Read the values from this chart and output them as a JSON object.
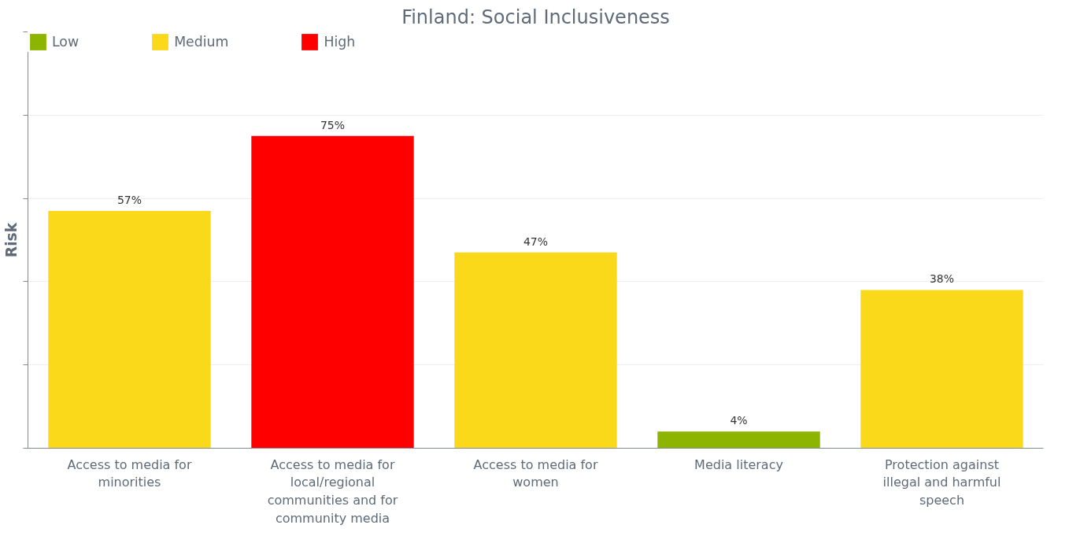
{
  "chart_data": {
    "type": "bar",
    "title": "Finland: Social Inclusiveness",
    "ylabel": "Risk",
    "categories": [
      "Access to media for minorities",
      "Access to media for local/regional communities and for community media",
      "Access to media for women",
      "Media literacy",
      "Protection against illegal and harmful speech"
    ],
    "series": [
      {
        "name": "Low",
        "color": "#8cb400",
        "values": [
          null,
          null,
          null,
          4,
          null
        ],
        "value_labels": [
          null,
          null,
          null,
          "4%",
          null
        ]
      },
      {
        "name": "Medium",
        "color": "#fad91b",
        "values": [
          57,
          null,
          47,
          null,
          38
        ],
        "value_labels": [
          "57%",
          null,
          "47%",
          null,
          "38%"
        ]
      },
      {
        "name": "High",
        "color": "#ff0000",
        "values": [
          null,
          75,
          null,
          null,
          null
        ],
        "value_labels": [
          null,
          "75%",
          null,
          null,
          null
        ]
      }
    ],
    "ylim": [
      0,
      100
    ],
    "yticks": [
      {
        "value": 0,
        "label": null
      },
      {
        "value": 20,
        "label": null
      },
      {
        "value": 40,
        "label": null
      },
      {
        "value": 60,
        "label": null
      },
      {
        "value": 80,
        "label": null
      },
      {
        "value": 100,
        "label": null
      }
    ],
    "tick_labels": "x",
    "grid": "y",
    "legend": "top left"
  }
}
